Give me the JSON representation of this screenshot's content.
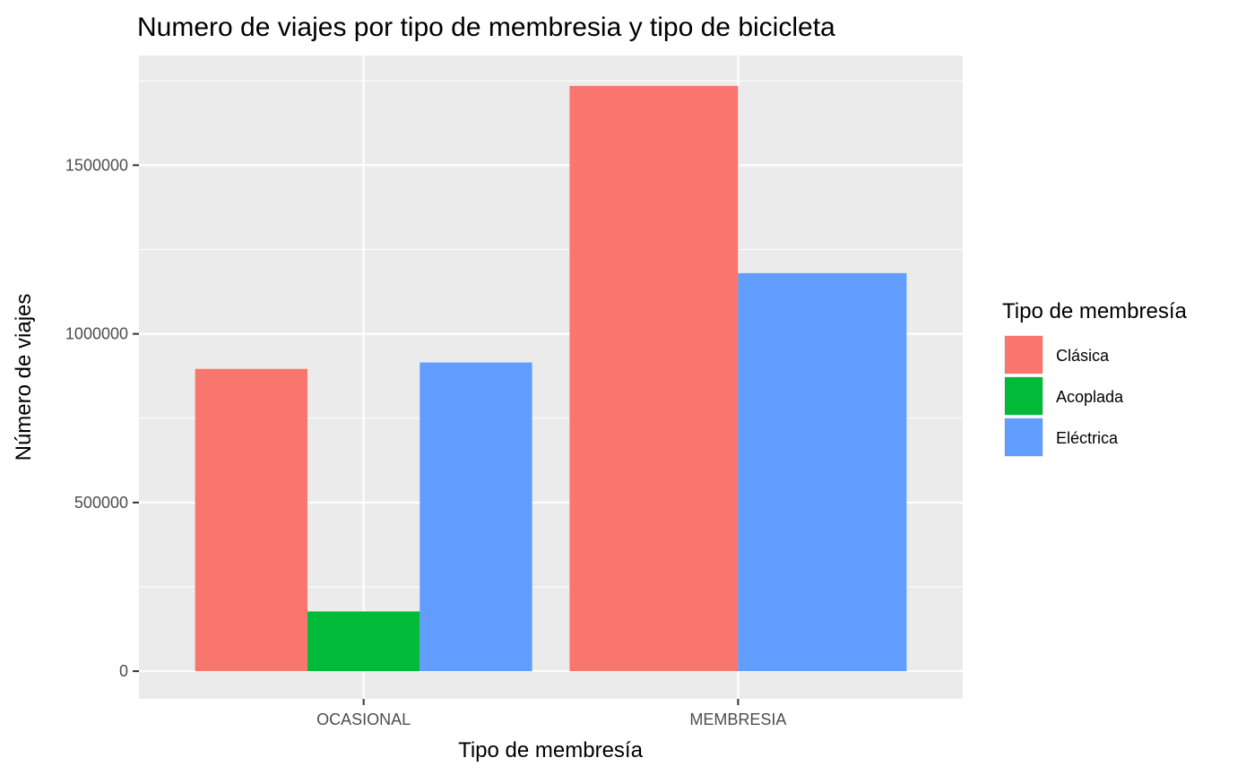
{
  "chart_data": {
    "type": "bar",
    "title": "Numero de viajes por tipo de membresia y tipo de bicicleta",
    "xlabel": "Tipo de membresía",
    "ylabel": "Número de viajes",
    "categories": [
      "OCASIONAL",
      "MEMBRESIA"
    ],
    "series": [
      {
        "name": "Clásica",
        "color": "#F8766D",
        "values": [
          896000,
          1735000
        ]
      },
      {
        "name": "Acoplada",
        "color": "#00BA38",
        "values": [
          177000,
          null
        ]
      },
      {
        "name": "Eléctrica",
        "color": "#619CFF",
        "values": [
          915000,
          1180000
        ]
      }
    ],
    "bar_groups": [
      [
        "Clásica",
        "Acoplada",
        "Eléctrica"
      ],
      [
        "Clásica",
        "Eléctrica"
      ]
    ],
    "ylim": [
      -82000,
      1825000
    ],
    "yticks": [
      0,
      500000,
      1000000,
      1500000
    ],
    "ytick_labels": [
      "0",
      "500000",
      "1000000",
      "1500000"
    ],
    "grid": true,
    "legend": {
      "title": "Tipo de membresía",
      "position": "right"
    },
    "colors": {
      "panel_background": "#EBEBEB",
      "grid": "#FFFFFF",
      "tick_text": "#4D4D4D",
      "tick_mark": "#333333"
    }
  }
}
